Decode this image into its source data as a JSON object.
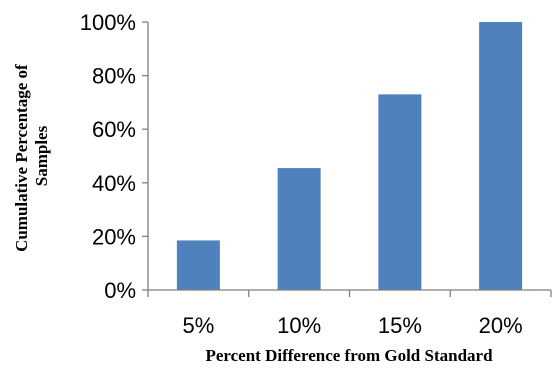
{
  "chart_data": {
    "type": "bar",
    "title": "",
    "xlabel": "Percent Difference from Gold Standard",
    "ylabel_lines": [
      "Cumulative Percentage of",
      "Samples"
    ],
    "categories": [
      "5%",
      "10%",
      "15%",
      "20%"
    ],
    "values": [
      18.5,
      45.5,
      73,
      100
    ],
    "ylim": [
      0,
      100
    ],
    "yticks": [
      0,
      20,
      40,
      60,
      80,
      100
    ],
    "ytick_labels": [
      "0%",
      "20%",
      "40%",
      "60%",
      "80%",
      "100%"
    ],
    "grid": false,
    "legend": "none",
    "bar_color": "#4f81bd",
    "axis_color": "#7f7f7f"
  }
}
